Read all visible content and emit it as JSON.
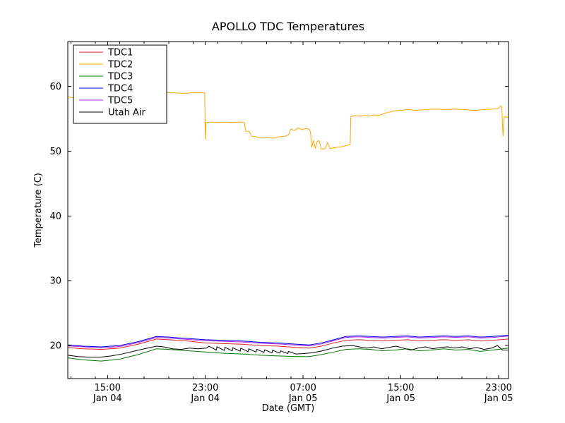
{
  "figure": {
    "background": "#ffffff",
    "axis_color": "#000000"
  },
  "chart_data": {
    "type": "line",
    "title": "APOLLO TDC Temperatures",
    "xlabel": "Date (GMT)",
    "ylabel": "Temperature (C)",
    "x_unit": "hours since Jan 04 00:00 GMT",
    "xlim": [
      11.75,
      47.8
    ],
    "ylim": [
      14.9,
      66.9
    ],
    "yticks": [
      20,
      30,
      40,
      50,
      60
    ],
    "xticks": [
      {
        "pos": 15,
        "line1": "15:00",
        "line2": "Jan 04"
      },
      {
        "pos": 23,
        "line1": "23:00",
        "line2": "Jan 04"
      },
      {
        "pos": 31,
        "line1": "07:00",
        "line2": "Jan 05"
      },
      {
        "pos": 39,
        "line1": "15:00",
        "line2": "Jan 05"
      },
      {
        "pos": 47,
        "line1": "23:00",
        "line2": "Jan 05"
      }
    ],
    "minor_xtick_interval": 2,
    "grid": false,
    "legend_position": "upper-left",
    "series": [
      {
        "name": "TDC1",
        "color": "#dd2222",
        "points": [
          [
            11.75,
            19.7
          ],
          [
            13,
            19.5
          ],
          [
            14.5,
            19.4
          ],
          [
            16,
            19.6
          ],
          [
            17.5,
            20.2
          ],
          [
            19,
            21.0
          ],
          [
            20,
            20.9
          ],
          [
            21.5,
            20.7
          ],
          [
            23,
            20.4
          ],
          [
            24.5,
            20.3
          ],
          [
            26,
            20.2
          ],
          [
            27.5,
            20.0
          ],
          [
            29,
            19.9
          ],
          [
            30.5,
            19.7
          ],
          [
            31.5,
            19.6
          ],
          [
            32.5,
            19.9
          ],
          [
            33.5,
            20.4
          ],
          [
            34.5,
            20.8
          ],
          [
            35.5,
            20.9
          ],
          [
            36.5,
            20.8
          ],
          [
            37.5,
            20.7
          ],
          [
            38.5,
            20.8
          ],
          [
            39.5,
            20.9
          ],
          [
            40.5,
            20.7
          ],
          [
            41.5,
            20.8
          ],
          [
            42.5,
            20.9
          ],
          [
            43.5,
            20.8
          ],
          [
            44.5,
            20.9
          ],
          [
            45.5,
            20.7
          ],
          [
            46.5,
            20.8
          ],
          [
            47.8,
            21.0
          ]
        ]
      },
      {
        "name": "TDC2",
        "color": "#ffa500",
        "points": [
          [
            11.75,
            58.4
          ],
          [
            12.2,
            58.2
          ],
          [
            12.8,
            58.1
          ],
          [
            13.5,
            58.0
          ],
          [
            14.2,
            58.1
          ],
          [
            15.0,
            58.0
          ],
          [
            15.8,
            58.1
          ],
          [
            16.6,
            58.0
          ],
          [
            17.4,
            58.1
          ],
          [
            18.2,
            58.1
          ],
          [
            19.0,
            58.2
          ],
          [
            19.4,
            58.6
          ],
          [
            19.8,
            59.0
          ],
          [
            20.5,
            59.0
          ],
          [
            21.2,
            58.9
          ],
          [
            21.9,
            59.0
          ],
          [
            22.6,
            59.0
          ],
          [
            22.95,
            59.0
          ],
          [
            23.0,
            51.8
          ],
          [
            23.05,
            54.4
          ],
          [
            23.5,
            54.5
          ],
          [
            24.0,
            54.4
          ],
          [
            24.6,
            54.5
          ],
          [
            25.2,
            54.4
          ],
          [
            25.8,
            54.5
          ],
          [
            26.2,
            54.4
          ],
          [
            26.3,
            53.1
          ],
          [
            26.6,
            53.0
          ],
          [
            26.8,
            52.3
          ],
          [
            27.2,
            52.2
          ],
          [
            27.6,
            52.0
          ],
          [
            28.0,
            52.1
          ],
          [
            28.5,
            52.0
          ],
          [
            29.0,
            52.2
          ],
          [
            29.5,
            52.3
          ],
          [
            29.8,
            52.5
          ],
          [
            30.0,
            53.4
          ],
          [
            30.3,
            53.2
          ],
          [
            30.6,
            53.6
          ],
          [
            30.9,
            53.3
          ],
          [
            31.2,
            53.5
          ],
          [
            31.5,
            53.4
          ],
          [
            31.6,
            53.0
          ],
          [
            31.7,
            50.6
          ],
          [
            31.85,
            51.6
          ],
          [
            32.0,
            50.4
          ],
          [
            32.15,
            51.5
          ],
          [
            32.3,
            51.6
          ],
          [
            32.5,
            50.3
          ],
          [
            32.8,
            50.4
          ],
          [
            33.0,
            51.3
          ],
          [
            33.2,
            50.4
          ],
          [
            33.5,
            50.5
          ],
          [
            33.8,
            50.6
          ],
          [
            34.2,
            50.7
          ],
          [
            34.6,
            50.9
          ],
          [
            34.85,
            51.0
          ],
          [
            34.9,
            55.3
          ],
          [
            35.2,
            55.5
          ],
          [
            35.6,
            55.4
          ],
          [
            36.0,
            55.5
          ],
          [
            36.4,
            55.4
          ],
          [
            36.8,
            55.6
          ],
          [
            37.2,
            55.5
          ],
          [
            37.6,
            55.8
          ],
          [
            38.0,
            56.0
          ],
          [
            38.4,
            56.2
          ],
          [
            39.0,
            56.3
          ],
          [
            39.6,
            56.4
          ],
          [
            40.2,
            56.3
          ],
          [
            41.0,
            56.4
          ],
          [
            41.8,
            56.5
          ],
          [
            42.6,
            56.4
          ],
          [
            43.4,
            56.5
          ],
          [
            44.2,
            56.4
          ],
          [
            45.0,
            56.3
          ],
          [
            45.8,
            56.4
          ],
          [
            46.6,
            56.5
          ],
          [
            47.0,
            56.6
          ],
          [
            47.15,
            57.0
          ],
          [
            47.25,
            56.8
          ],
          [
            47.35,
            52.3
          ],
          [
            47.45,
            55.3
          ],
          [
            47.8,
            55.2
          ]
        ]
      },
      {
        "name": "TDC3",
        "color": "#007700",
        "points": [
          [
            11.75,
            18.1
          ],
          [
            13,
            17.8
          ],
          [
            14.5,
            17.6
          ],
          [
            16,
            17.9
          ],
          [
            17.5,
            18.6
          ],
          [
            19,
            19.5
          ],
          [
            20,
            19.4
          ],
          [
            21.5,
            19.2
          ],
          [
            23,
            19.0
          ],
          [
            24.5,
            18.8
          ],
          [
            26,
            18.7
          ],
          [
            27.5,
            18.5
          ],
          [
            29,
            18.4
          ],
          [
            30.5,
            18.3
          ],
          [
            31.5,
            18.3
          ],
          [
            32.5,
            18.6
          ],
          [
            33.5,
            19.0
          ],
          [
            34.5,
            19.4
          ],
          [
            35.5,
            19.5
          ],
          [
            36.5,
            19.4
          ],
          [
            37.5,
            19.2
          ],
          [
            38.5,
            19.3
          ],
          [
            39.5,
            19.5
          ],
          [
            40.5,
            19.2
          ],
          [
            41.5,
            19.3
          ],
          [
            42.5,
            19.5
          ],
          [
            43.5,
            19.3
          ],
          [
            44.5,
            19.4
          ],
          [
            45.5,
            19.1
          ],
          [
            46.5,
            19.3
          ],
          [
            47.8,
            19.6
          ]
        ]
      },
      {
        "name": "TDC4",
        "color": "#0000dd",
        "points": [
          [
            11.75,
            20.1
          ],
          [
            13,
            19.9
          ],
          [
            14.5,
            19.8
          ],
          [
            16,
            20.0
          ],
          [
            17.5,
            20.6
          ],
          [
            19,
            21.4
          ],
          [
            20,
            21.3
          ],
          [
            21.5,
            21.1
          ],
          [
            23,
            20.9
          ],
          [
            24.5,
            20.8
          ],
          [
            26,
            20.7
          ],
          [
            27.5,
            20.5
          ],
          [
            29,
            20.4
          ],
          [
            30.5,
            20.2
          ],
          [
            31.5,
            20.1
          ],
          [
            32.5,
            20.4
          ],
          [
            33.5,
            20.9
          ],
          [
            34.5,
            21.4
          ],
          [
            35.5,
            21.5
          ],
          [
            36.5,
            21.4
          ],
          [
            37.5,
            21.3
          ],
          [
            38.5,
            21.4
          ],
          [
            39.5,
            21.5
          ],
          [
            40.5,
            21.3
          ],
          [
            41.5,
            21.4
          ],
          [
            42.5,
            21.5
          ],
          [
            43.5,
            21.4
          ],
          [
            44.5,
            21.5
          ],
          [
            45.5,
            21.3
          ],
          [
            46.5,
            21.4
          ],
          [
            47.8,
            21.6
          ]
        ]
      },
      {
        "name": "TDC5",
        "color": "#a020f0",
        "points": [
          [
            11.75,
            19.95
          ],
          [
            13,
            19.8
          ],
          [
            14.5,
            19.65
          ],
          [
            16,
            19.85
          ],
          [
            17.5,
            20.45
          ],
          [
            19,
            21.25
          ],
          [
            20,
            21.15
          ],
          [
            21.5,
            20.95
          ],
          [
            23,
            20.75
          ],
          [
            24.5,
            20.65
          ],
          [
            26,
            20.55
          ],
          [
            27.5,
            20.35
          ],
          [
            29,
            20.25
          ],
          [
            30.5,
            20.05
          ],
          [
            31.5,
            19.95
          ],
          [
            32.5,
            20.25
          ],
          [
            33.5,
            20.75
          ],
          [
            34.5,
            21.25
          ],
          [
            35.5,
            21.35
          ],
          [
            36.5,
            21.25
          ],
          [
            37.5,
            21.15
          ],
          [
            38.5,
            21.25
          ],
          [
            39.5,
            21.35
          ],
          [
            40.5,
            21.15
          ],
          [
            41.5,
            21.25
          ],
          [
            42.5,
            21.35
          ],
          [
            43.5,
            21.25
          ],
          [
            44.5,
            21.35
          ],
          [
            45.5,
            21.15
          ],
          [
            46.5,
            21.25
          ],
          [
            47.8,
            21.45
          ]
        ]
      },
      {
        "name": "Utah Air",
        "color": "#000000",
        "points": [
          [
            11.75,
            18.5
          ],
          [
            12.6,
            18.3
          ],
          [
            13.5,
            18.2
          ],
          [
            14.4,
            18.2
          ],
          [
            15.3,
            18.4
          ],
          [
            16.2,
            18.7
          ],
          [
            17.1,
            19.1
          ],
          [
            18.0,
            19.5
          ],
          [
            19.0,
            19.9
          ],
          [
            19.6,
            19.8
          ],
          [
            20.3,
            19.5
          ],
          [
            21.0,
            19.4
          ],
          [
            21.7,
            19.6
          ],
          [
            22.4,
            19.5
          ],
          [
            23.1,
            19.6
          ],
          [
            23.3,
            19.9
          ],
          [
            23.9,
            19.3
          ],
          [
            23.95,
            19.82
          ],
          [
            24.55,
            19.24
          ],
          [
            24.6,
            19.74
          ],
          [
            25.2,
            19.18
          ],
          [
            25.25,
            19.66
          ],
          [
            25.85,
            19.12
          ],
          [
            25.9,
            19.58
          ],
          [
            26.5,
            19.06
          ],
          [
            26.55,
            19.5
          ],
          [
            27.15,
            19.0
          ],
          [
            27.2,
            19.42
          ],
          [
            27.8,
            18.94
          ],
          [
            27.85,
            19.34
          ],
          [
            28.45,
            18.88
          ],
          [
            28.5,
            19.26
          ],
          [
            29.1,
            18.82
          ],
          [
            29.15,
            19.18
          ],
          [
            29.75,
            18.76
          ],
          [
            29.8,
            19.1
          ],
          [
            30.4,
            18.7
          ],
          [
            31.0,
            18.75
          ],
          [
            31.8,
            18.9
          ],
          [
            32.6,
            19.2
          ],
          [
            33.4,
            19.6
          ],
          [
            34.2,
            19.9
          ],
          [
            35.0,
            20.0
          ],
          [
            35.6,
            19.8
          ],
          [
            36.2,
            19.6
          ],
          [
            36.8,
            19.8
          ],
          [
            37.4,
            19.5
          ],
          [
            38.0,
            19.7
          ],
          [
            38.6,
            19.9
          ],
          [
            39.2,
            19.6
          ],
          [
            39.8,
            19.3
          ],
          [
            40.4,
            19.6
          ],
          [
            41.0,
            19.8
          ],
          [
            41.6,
            19.5
          ],
          [
            42.2,
            19.7
          ],
          [
            42.8,
            19.8
          ],
          [
            43.4,
            19.6
          ],
          [
            44.0,
            19.8
          ],
          [
            44.6,
            19.5
          ],
          [
            45.2,
            19.7
          ],
          [
            45.8,
            19.4
          ],
          [
            46.4,
            19.6
          ],
          [
            46.9,
            20.0
          ],
          [
            47.3,
            19.3
          ],
          [
            47.8,
            19.3
          ]
        ]
      }
    ]
  }
}
